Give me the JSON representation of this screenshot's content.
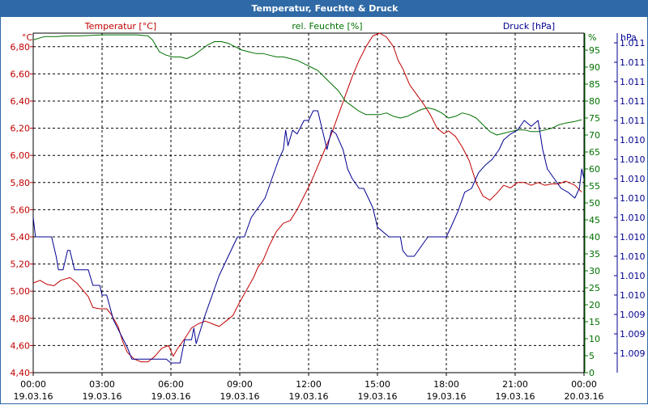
{
  "window": {
    "title": "Temperatur, Feuchte & Druck"
  },
  "colors": {
    "titlebar": "#2f6aa6",
    "temperature": "#c00000",
    "humidity": "#007000",
    "pressure": "#000090",
    "grid": "#000000"
  },
  "chart_data": {
    "type": "line",
    "title": "Temperatur, Feuchte & Druck",
    "grid": true,
    "x_range_hours": [
      0,
      24
    ],
    "x_ticks": [
      {
        "h": 0,
        "time": "00:00",
        "date": "19.03.16"
      },
      {
        "h": 3,
        "time": "03:00",
        "date": "19.03.16"
      },
      {
        "h": 6,
        "time": "06:00",
        "date": "19.03.16"
      },
      {
        "h": 9,
        "time": "09:00",
        "date": "19.03.16"
      },
      {
        "h": 12,
        "time": "12:00",
        "date": "19.03.16"
      },
      {
        "h": 15,
        "time": "15:00",
        "date": "19.03.16"
      },
      {
        "h": 18,
        "time": "18:00",
        "date": "19.03.16"
      },
      {
        "h": 21,
        "time": "21:00",
        "date": "19.03.16"
      },
      {
        "h": 24,
        "time": "00:00",
        "date": "20.03.16"
      }
    ],
    "axes": {
      "temperature": {
        "label": "Temperatur [°C]",
        "unit": "°C",
        "range": [
          4.4,
          6.9
        ],
        "ticks": [
          {
            "v": 4.4,
            "label": "4,40"
          },
          {
            "v": 4.6,
            "label": "4,60"
          },
          {
            "v": 4.8,
            "label": "4,80"
          },
          {
            "v": 5.0,
            "label": "5,00"
          },
          {
            "v": 5.2,
            "label": "5,20"
          },
          {
            "v": 5.4,
            "label": "5,40"
          },
          {
            "v": 5.6,
            "label": "5,60"
          },
          {
            "v": 5.8,
            "label": "5,80"
          },
          {
            "v": 6.0,
            "label": "6,00"
          },
          {
            "v": 6.2,
            "label": "6,20"
          },
          {
            "v": 6.4,
            "label": "6,40"
          },
          {
            "v": 6.6,
            "label": "6,60"
          },
          {
            "v": 6.8,
            "label": "6,80"
          }
        ]
      },
      "humidity": {
        "label": "rel. Feuchte [%]",
        "unit": "%",
        "range": [
          0,
          100
        ],
        "ticks": [
          0,
          5,
          10,
          15,
          20,
          25,
          30,
          35,
          40,
          45,
          50,
          55,
          60,
          65,
          70,
          75,
          80,
          85,
          90,
          95
        ]
      },
      "pressure": {
        "label": "Druck [hPa]",
        "unit": "hPa",
        "range": [
          1009.45,
          1011.2
        ],
        "ticks": [
          {
            "v": 1009.55,
            "label": "1.009"
          },
          {
            "v": 1009.65,
            "label": "1.009"
          },
          {
            "v": 1009.75,
            "label": "1.009"
          },
          {
            "v": 1009.85,
            "label": "1.010"
          },
          {
            "v": 1009.95,
            "label": "1.010"
          },
          {
            "v": 1010.05,
            "label": "1.010"
          },
          {
            "v": 1010.15,
            "label": "1.010"
          },
          {
            "v": 1010.25,
            "label": "1.010"
          },
          {
            "v": 1010.35,
            "label": "1.010"
          },
          {
            "v": 1010.45,
            "label": "1.010"
          },
          {
            "v": 1010.55,
            "label": "1.010"
          },
          {
            "v": 1010.65,
            "label": "1.010"
          },
          {
            "v": 1010.75,
            "label": "1.011"
          },
          {
            "v": 1010.85,
            "label": "1.011"
          },
          {
            "v": 1010.95,
            "label": "1.011"
          },
          {
            "v": 1011.05,
            "label": "1.011"
          },
          {
            "v": 1011.15,
            "label": "1.011"
          }
        ]
      }
    },
    "series": [
      {
        "name": "Temperatur [°C]",
        "axis": "temperature",
        "color": "#c00000",
        "points": [
          [
            0,
            5.06
          ],
          [
            0.3,
            5.08
          ],
          [
            0.6,
            5.05
          ],
          [
            0.9,
            5.04
          ],
          [
            1.2,
            5.08
          ],
          [
            1.6,
            5.1
          ],
          [
            1.9,
            5.06
          ],
          [
            2.1,
            5.02
          ],
          [
            2.4,
            4.96
          ],
          [
            2.6,
            4.88
          ],
          [
            2.9,
            4.87
          ],
          [
            3.2,
            4.87
          ],
          [
            3.4,
            4.83
          ],
          [
            3.7,
            4.74
          ],
          [
            3.9,
            4.63
          ],
          [
            4.1,
            4.55
          ],
          [
            4.4,
            4.5
          ],
          [
            4.7,
            4.48
          ],
          [
            5.0,
            4.48
          ],
          [
            5.3,
            4.52
          ],
          [
            5.6,
            4.58
          ],
          [
            5.9,
            4.6
          ],
          [
            6.1,
            4.52
          ],
          [
            6.3,
            4.58
          ],
          [
            6.6,
            4.65
          ],
          [
            6.9,
            4.73
          ],
          [
            7.2,
            4.76
          ],
          [
            7.5,
            4.78
          ],
          [
            7.8,
            4.76
          ],
          [
            8.1,
            4.74
          ],
          [
            8.4,
            4.78
          ],
          [
            8.7,
            4.82
          ],
          [
            9.0,
            4.92
          ],
          [
            9.2,
            4.98
          ],
          [
            9.4,
            5.04
          ],
          [
            9.6,
            5.1
          ],
          [
            9.8,
            5.18
          ],
          [
            10.0,
            5.22
          ],
          [
            10.3,
            5.34
          ],
          [
            10.6,
            5.44
          ],
          [
            10.9,
            5.5
          ],
          [
            11.2,
            5.52
          ],
          [
            11.5,
            5.6
          ],
          [
            11.8,
            5.7
          ],
          [
            12.1,
            5.8
          ],
          [
            12.4,
            5.92
          ],
          [
            12.7,
            6.04
          ],
          [
            13.0,
            6.16
          ],
          [
            13.3,
            6.3
          ],
          [
            13.6,
            6.44
          ],
          [
            13.9,
            6.58
          ],
          [
            14.2,
            6.7
          ],
          [
            14.5,
            6.8
          ],
          [
            14.8,
            6.88
          ],
          [
            15.1,
            6.9
          ],
          [
            15.4,
            6.87
          ],
          [
            15.7,
            6.8
          ],
          [
            15.9,
            6.7
          ],
          [
            16.1,
            6.64
          ],
          [
            16.4,
            6.52
          ],
          [
            16.7,
            6.45
          ],
          [
            17.0,
            6.38
          ],
          [
            17.3,
            6.3
          ],
          [
            17.6,
            6.2
          ],
          [
            17.9,
            6.16
          ],
          [
            18.1,
            6.18
          ],
          [
            18.4,
            6.14
          ],
          [
            18.7,
            6.06
          ],
          [
            19.0,
            5.96
          ],
          [
            19.3,
            5.8
          ],
          [
            19.6,
            5.7
          ],
          [
            19.9,
            5.67
          ],
          [
            20.2,
            5.72
          ],
          [
            20.5,
            5.78
          ],
          [
            20.8,
            5.76
          ],
          [
            21.1,
            5.8
          ],
          [
            21.4,
            5.8
          ],
          [
            21.7,
            5.78
          ],
          [
            22.0,
            5.8
          ],
          [
            22.3,
            5.78
          ],
          [
            22.6,
            5.79
          ],
          [
            22.9,
            5.79
          ],
          [
            23.2,
            5.81
          ],
          [
            23.6,
            5.78
          ],
          [
            23.9,
            5.73
          ]
        ]
      },
      {
        "name": "rel. Feuchte [%]",
        "axis": "humidity",
        "color": "#007000",
        "points": [
          [
            0,
            98
          ],
          [
            0.5,
            99
          ],
          [
            1.0,
            99
          ],
          [
            1.5,
            99.2
          ],
          [
            2.0,
            99.2
          ],
          [
            2.5,
            99.3
          ],
          [
            3.0,
            99.5
          ],
          [
            3.5,
            99.5
          ],
          [
            4.0,
            99.5
          ],
          [
            4.5,
            99.5
          ],
          [
            5.0,
            99.2
          ],
          [
            5.2,
            98
          ],
          [
            5.5,
            94.5
          ],
          [
            5.8,
            93.5
          ],
          [
            6.1,
            93
          ],
          [
            6.4,
            93
          ],
          [
            6.7,
            92.5
          ],
          [
            7.0,
            93.5
          ],
          [
            7.3,
            95
          ],
          [
            7.6,
            96.5
          ],
          [
            7.9,
            97.5
          ],
          [
            8.2,
            97.5
          ],
          [
            8.5,
            97
          ],
          [
            8.8,
            96
          ],
          [
            9.1,
            95
          ],
          [
            9.4,
            94.5
          ],
          [
            9.7,
            94
          ],
          [
            10.0,
            94
          ],
          [
            10.3,
            93.5
          ],
          [
            10.6,
            93
          ],
          [
            10.9,
            93
          ],
          [
            11.2,
            92.5
          ],
          [
            11.5,
            92
          ],
          [
            11.8,
            91
          ],
          [
            12.1,
            90
          ],
          [
            12.4,
            89
          ],
          [
            12.7,
            87
          ],
          [
            13.0,
            85
          ],
          [
            13.3,
            83
          ],
          [
            13.6,
            80
          ],
          [
            13.9,
            78.5
          ],
          [
            14.2,
            77
          ],
          [
            14.5,
            76
          ],
          [
            14.8,
            76
          ],
          [
            15.1,
            76
          ],
          [
            15.4,
            76.5
          ],
          [
            15.7,
            75.5
          ],
          [
            16.0,
            75
          ],
          [
            16.3,
            75.5
          ],
          [
            16.6,
            76.5
          ],
          [
            16.9,
            77.5
          ],
          [
            17.2,
            78
          ],
          [
            17.5,
            77.5
          ],
          [
            17.8,
            76.5
          ],
          [
            18.1,
            75
          ],
          [
            18.4,
            75.5
          ],
          [
            18.7,
            76.5
          ],
          [
            19.0,
            76
          ],
          [
            19.3,
            75
          ],
          [
            19.6,
            73
          ],
          [
            19.9,
            71
          ],
          [
            20.2,
            70
          ],
          [
            20.5,
            70.5
          ],
          [
            20.8,
            71
          ],
          [
            21.1,
            71.5
          ],
          [
            21.4,
            71.5
          ],
          [
            21.7,
            71
          ],
          [
            22.0,
            71
          ],
          [
            22.3,
            71.5
          ],
          [
            22.6,
            72
          ],
          [
            22.9,
            73
          ],
          [
            23.2,
            73.5
          ],
          [
            23.6,
            74
          ],
          [
            23.9,
            74.5
          ]
        ]
      },
      {
        "name": "Druck [hPa]",
        "axis": "pressure",
        "color": "#000090",
        "points": [
          [
            0,
            1010.25
          ],
          [
            0.1,
            1010.15
          ],
          [
            0.8,
            1010.15
          ],
          [
            1.0,
            1010.05
          ],
          [
            1.1,
            1009.98
          ],
          [
            1.3,
            1009.98
          ],
          [
            1.5,
            1010.08
          ],
          [
            1.6,
            1010.08
          ],
          [
            1.8,
            1009.98
          ],
          [
            2.4,
            1009.98
          ],
          [
            2.6,
            1009.9
          ],
          [
            2.9,
            1009.9
          ],
          [
            3.0,
            1009.85
          ],
          [
            3.2,
            1009.85
          ],
          [
            3.5,
            1009.72
          ],
          [
            3.8,
            1009.65
          ],
          [
            4.1,
            1009.58
          ],
          [
            4.3,
            1009.52
          ],
          [
            4.6,
            1009.52
          ],
          [
            5.0,
            1009.52
          ],
          [
            5.4,
            1009.52
          ],
          [
            5.8,
            1009.52
          ],
          [
            6.0,
            1009.5
          ],
          [
            6.4,
            1009.5
          ],
          [
            6.6,
            1009.62
          ],
          [
            6.9,
            1009.62
          ],
          [
            7.0,
            1009.68
          ],
          [
            7.1,
            1009.6
          ],
          [
            7.5,
            1009.75
          ],
          [
            7.8,
            1009.85
          ],
          [
            8.1,
            1009.95
          ],
          [
            8.5,
            1010.05
          ],
          [
            8.9,
            1010.15
          ],
          [
            9.2,
            1010.15
          ],
          [
            9.5,
            1010.25
          ],
          [
            9.8,
            1010.3
          ],
          [
            10.1,
            1010.35
          ],
          [
            10.4,
            1010.45
          ],
          [
            10.7,
            1010.55
          ],
          [
            10.9,
            1010.6
          ],
          [
            11.0,
            1010.7
          ],
          [
            11.1,
            1010.62
          ],
          [
            11.3,
            1010.7
          ],
          [
            11.5,
            1010.68
          ],
          [
            11.8,
            1010.75
          ],
          [
            12.0,
            1010.75
          ],
          [
            12.2,
            1010.8
          ],
          [
            12.4,
            1010.8
          ],
          [
            12.6,
            1010.7
          ],
          [
            12.8,
            1010.6
          ],
          [
            13.0,
            1010.7
          ],
          [
            13.2,
            1010.68
          ],
          [
            13.5,
            1010.6
          ],
          [
            13.7,
            1010.5
          ],
          [
            13.9,
            1010.45
          ],
          [
            14.2,
            1010.4
          ],
          [
            14.4,
            1010.4
          ],
          [
            14.6,
            1010.35
          ],
          [
            14.8,
            1010.3
          ],
          [
            15.0,
            1010.2
          ],
          [
            15.5,
            1010.15
          ],
          [
            16.0,
            1010.15
          ],
          [
            16.1,
            1010.08
          ],
          [
            16.3,
            1010.05
          ],
          [
            16.6,
            1010.05
          ],
          [
            16.9,
            1010.1
          ],
          [
            17.2,
            1010.15
          ],
          [
            17.5,
            1010.15
          ],
          [
            17.8,
            1010.15
          ],
          [
            18.0,
            1010.15
          ],
          [
            18.2,
            1010.2
          ],
          [
            18.5,
            1010.28
          ],
          [
            18.8,
            1010.38
          ],
          [
            19.1,
            1010.4
          ],
          [
            19.4,
            1010.48
          ],
          [
            19.7,
            1010.52
          ],
          [
            20.0,
            1010.55
          ],
          [
            20.3,
            1010.6
          ],
          [
            20.5,
            1010.65
          ],
          [
            20.8,
            1010.68
          ],
          [
            21.1,
            1010.7
          ],
          [
            21.4,
            1010.75
          ],
          [
            21.7,
            1010.72
          ],
          [
            22.0,
            1010.75
          ],
          [
            22.2,
            1010.6
          ],
          [
            22.4,
            1010.5
          ],
          [
            22.7,
            1010.45
          ],
          [
            23.0,
            1010.4
          ],
          [
            23.3,
            1010.38
          ],
          [
            23.6,
            1010.35
          ],
          [
            23.8,
            1010.4
          ],
          [
            23.9,
            1010.5
          ],
          [
            24.0,
            1010.45
          ]
        ]
      }
    ]
  }
}
